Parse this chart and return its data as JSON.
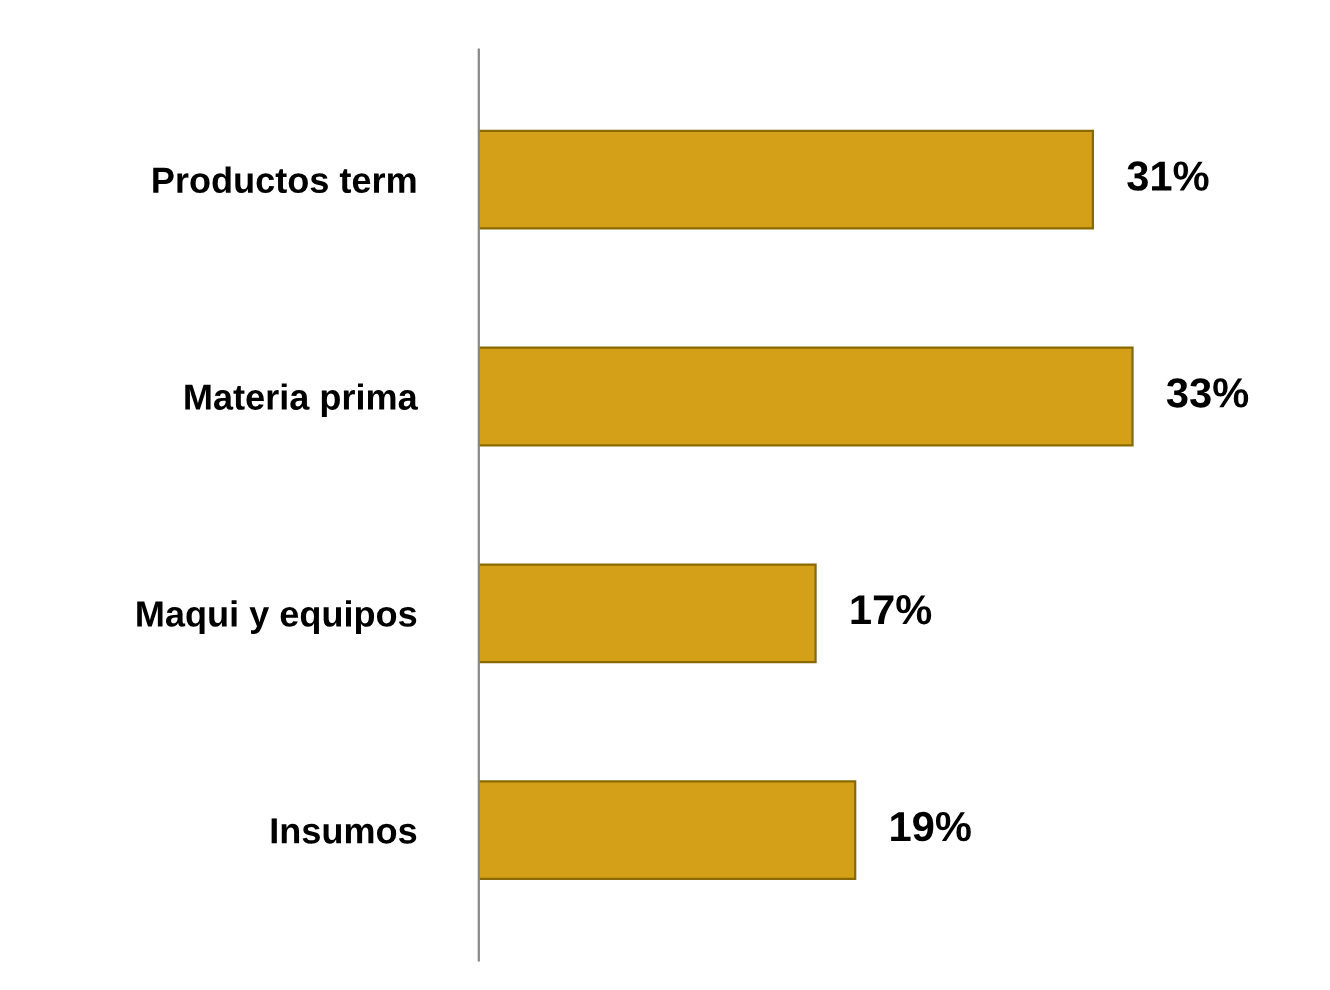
{
  "chart_data": {
    "type": "bar",
    "orientation": "horizontal",
    "categories": [
      "Productos term",
      "Materia prima",
      "Maqui y equipos",
      "Insumos"
    ],
    "values": [
      31,
      33,
      17,
      19
    ],
    "value_labels": [
      "31%",
      "33%",
      "17%",
      "19%"
    ],
    "color": "#d4a017",
    "grid": false,
    "legend": false
  }
}
